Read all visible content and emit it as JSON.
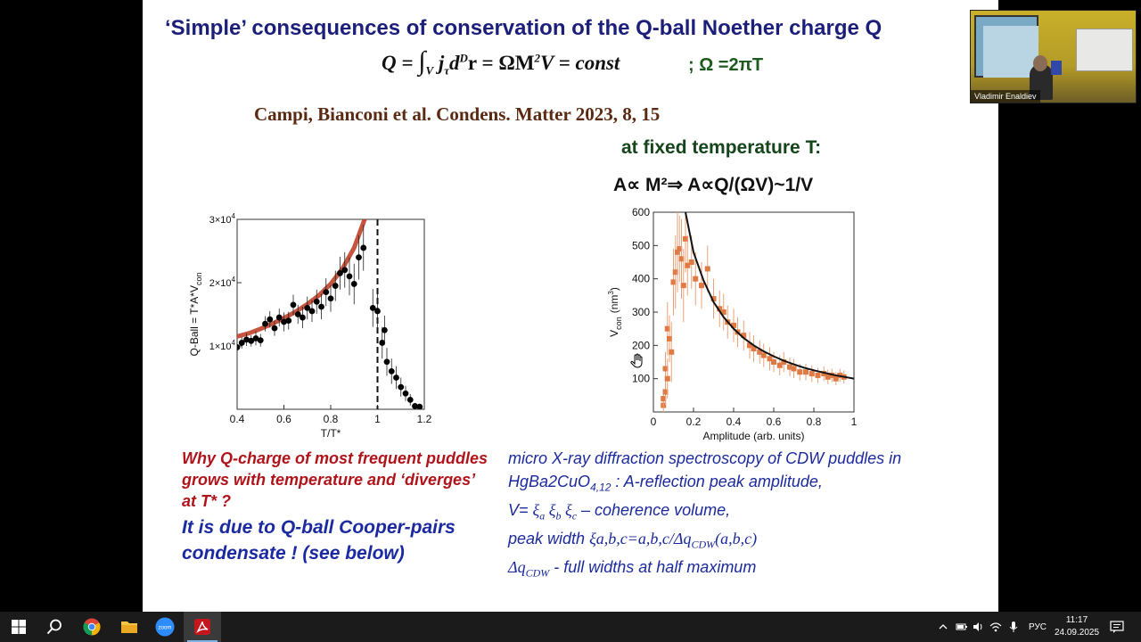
{
  "slide": {
    "title": "‘Simple’ consequences of conservation of the Q-ball Noether charge  Q",
    "formula": {
      "lhs": "Q = ",
      "integral": "∫",
      "limit": "V",
      "j": "j",
      "tau": "τ",
      "d": "d",
      "D": "D",
      "r": "r = ΩM",
      "two": "2",
      "rest": "V = const"
    },
    "omega_relation": ";  Ω =2πT",
    "citation": "Campi, Bianconi et al. Condens. Matter 2023, 8, 15",
    "fixed_temperature": "at fixed temperature T:",
    "proportionality": "A∝ M²⇒ A∝Q/(ΩV)~1/V",
    "why_question": "Why Q-charge of most frequent puddles grows with temperature and ‘diverges’ at T* ?",
    "answer": "It is due to Q-ball Cooper-pairs condensate ! (see below)",
    "description": {
      "line1": "micro X-ray diffraction spectroscopy of CDW puddles in",
      "line2a": "HgBa2CuO",
      "line2sub": "4,12",
      "line2b": " : A-reflection peak amplitude,",
      "line3a": "V= ",
      "xi_a": "ξ",
      "a": "a",
      "xi_b": " ξ",
      "b": "b",
      "xi_c": " ξ",
      "c": "c",
      "line3b": " – coherence volume,",
      "line4a": "peak width ",
      "line4b": "ξa,b,c=a,b,c/Δq",
      "cdw_sub": "CDW",
      "line4c": "(a,b,c)",
      "line5a": "Δq",
      "cdw_sub2": "CDW",
      "line5b": " - full widths at half maximum"
    }
  },
  "chart_data": [
    {
      "type": "scatter",
      "title": "",
      "xlabel": "T/T*",
      "ylabel": "Q-Ball = T*A*V",
      "ylabel_sub": "con",
      "xlim": [
        0.4,
        1.2
      ],
      "ylim": [
        0,
        30000
      ],
      "xticks": [
        "0.4",
        "0.6",
        "0.8",
        "1",
        "1.2"
      ],
      "yticks": [
        {
          "value": 10000,
          "mantissa": "1×10",
          "exp": "4"
        },
        {
          "value": 20000,
          "mantissa": "2×10",
          "exp": "4"
        },
        {
          "value": 30000,
          "mantissa": "3×10",
          "exp": "4"
        }
      ],
      "vertical_line_x": 1.0,
      "series": [
        {
          "role": "data",
          "color": "#000000",
          "points": [
            [
              0.4,
              9800,
              800
            ],
            [
              0.42,
              10500,
              900
            ],
            [
              0.44,
              11000,
              1000
            ],
            [
              0.46,
              10800,
              900
            ],
            [
              0.48,
              11200,
              1100
            ],
            [
              0.5,
              10900,
              1000
            ],
            [
              0.52,
              13500,
              1200
            ],
            [
              0.54,
              14200,
              1300
            ],
            [
              0.56,
              12800,
              1200
            ],
            [
              0.58,
              14500,
              1400
            ],
            [
              0.6,
              13800,
              1500
            ],
            [
              0.62,
              14000,
              1400
            ],
            [
              0.64,
              16500,
              1600
            ],
            [
              0.66,
              15000,
              1500
            ],
            [
              0.68,
              14500,
              1700
            ],
            [
              0.7,
              16000,
              1800
            ],
            [
              0.72,
              15500,
              1700
            ],
            [
              0.74,
              17000,
              1900
            ],
            [
              0.76,
              16200,
              2000
            ],
            [
              0.78,
              18500,
              2200
            ],
            [
              0.8,
              17500,
              2100
            ],
            [
              0.82,
              19500,
              2400
            ],
            [
              0.84,
              21500,
              2600
            ],
            [
              0.86,
              22000,
              2800
            ],
            [
              0.88,
              21000,
              3000
            ],
            [
              0.9,
              19800,
              3200
            ],
            [
              0.92,
              24000,
              3500
            ],
            [
              0.94,
              25500,
              3600
            ],
            [
              0.98,
              16000,
              3000
            ],
            [
              1.0,
              15500,
              2800
            ],
            [
              1.02,
              10500,
              2500
            ],
            [
              1.03,
              12500,
              2300
            ],
            [
              1.04,
              7500,
              2200
            ],
            [
              1.06,
              6000,
              2000
            ],
            [
              1.08,
              5000,
              1800
            ],
            [
              1.1,
              3500,
              1500
            ],
            [
              1.12,
              2500,
              1200
            ],
            [
              1.14,
              1500,
              900
            ],
            [
              1.16,
              500,
              500
            ],
            [
              1.18,
              400,
              300
            ]
          ]
        },
        {
          "role": "fit",
          "color": "#c0412a",
          "points": [
            [
              0.4,
              11500
            ],
            [
              0.45,
              12000
            ],
            [
              0.5,
              12700
            ],
            [
              0.55,
              13500
            ],
            [
              0.6,
              14400
            ],
            [
              0.65,
              15400
            ],
            [
              0.7,
              16600
            ],
            [
              0.75,
              18000
            ],
            [
              0.8,
              19800
            ],
            [
              0.85,
              22200
            ],
            [
              0.9,
              25500
            ],
            [
              0.93,
              28500
            ],
            [
              0.95,
              30500
            ]
          ]
        }
      ]
    },
    {
      "type": "scatter",
      "title": "",
      "xlabel": "Amplitude (arb. units)",
      "ylabel": "V",
      "ylabel_sub": "con",
      "ylabel_unit": "(nm",
      "ylabel_unit_exp": "3",
      "ylabel_unit_end": ")",
      "xlim": [
        0,
        1
      ],
      "ylim": [
        0,
        600
      ],
      "xticks": [
        "0",
        "0.2",
        "0.4",
        "0.6",
        "0.8",
        "1"
      ],
      "yticks": [
        "100",
        "200",
        "300",
        "400",
        "500",
        "600"
      ],
      "series": [
        {
          "role": "data",
          "color": "#e07a45",
          "points": [
            [
              0.05,
              20,
              20
            ],
            [
              0.05,
              40,
              30
            ],
            [
              0.06,
              60,
              40
            ],
            [
              0.06,
              130,
              50
            ],
            [
              0.07,
              100,
              60
            ],
            [
              0.07,
              250,
              80
            ],
            [
              0.08,
              220,
              70
            ],
            [
              0.09,
              180,
              90
            ],
            [
              0.1,
              390,
              100
            ],
            [
              0.11,
              420,
              110
            ],
            [
              0.12,
              480,
              120
            ],
            [
              0.13,
              490,
              100
            ],
            [
              0.14,
              460,
              120
            ],
            [
              0.15,
              380,
              110
            ],
            [
              0.16,
              520,
              100
            ],
            [
              0.17,
              440,
              90
            ],
            [
              0.19,
              450,
              80
            ],
            [
              0.21,
              400,
              80
            ],
            [
              0.24,
              380,
              70
            ],
            [
              0.27,
              430,
              70
            ],
            [
              0.3,
              340,
              60
            ],
            [
              0.33,
              310,
              55
            ],
            [
              0.35,
              300,
              55
            ],
            [
              0.37,
              270,
              50
            ],
            [
              0.4,
              260,
              50
            ],
            [
              0.42,
              240,
              45
            ],
            [
              0.45,
              230,
              45
            ],
            [
              0.48,
              200,
              40
            ],
            [
              0.5,
              190,
              40
            ],
            [
              0.53,
              180,
              35
            ],
            [
              0.55,
              170,
              35
            ],
            [
              0.58,
              160,
              35
            ],
            [
              0.6,
              150,
              30
            ],
            [
              0.63,
              140,
              30
            ],
            [
              0.65,
              150,
              30
            ],
            [
              0.68,
              135,
              28
            ],
            [
              0.7,
              130,
              28
            ],
            [
              0.73,
              120,
              25
            ],
            [
              0.76,
              120,
              25
            ],
            [
              0.79,
              115,
              25
            ],
            [
              0.82,
              110,
              22
            ],
            [
              0.85,
              115,
              22
            ],
            [
              0.87,
              105,
              22
            ],
            [
              0.89,
              110,
              20
            ],
            [
              0.91,
              100,
              20
            ],
            [
              0.93,
              110,
              20
            ],
            [
              0.95,
              105,
              20
            ]
          ]
        },
        {
          "role": "fit",
          "color": "#111111",
          "points": [
            [
              0.16,
              600
            ],
            [
              0.18,
              540
            ],
            [
              0.2,
              480
            ],
            [
              0.25,
              395
            ],
            [
              0.3,
              330
            ],
            [
              0.35,
              285
            ],
            [
              0.4,
              250
            ],
            [
              0.45,
              222
            ],
            [
              0.5,
              200
            ],
            [
              0.55,
              182
            ],
            [
              0.6,
              167
            ],
            [
              0.65,
              154
            ],
            [
              0.7,
              143
            ],
            [
              0.75,
              133
            ],
            [
              0.8,
              125
            ],
            [
              0.85,
              118
            ],
            [
              0.9,
              111
            ],
            [
              1.0,
              100
            ]
          ]
        }
      ]
    }
  ],
  "webcam": {
    "participant_name": "Vladimir Enaldiev"
  },
  "taskbar": {
    "apps": [
      "windows-start",
      "search",
      "chrome",
      "file-explorer",
      "zoom",
      "acrobat"
    ],
    "zoom_label": "zoom",
    "language": "РУС",
    "time": "11:17",
    "date": "24.09.2025"
  }
}
